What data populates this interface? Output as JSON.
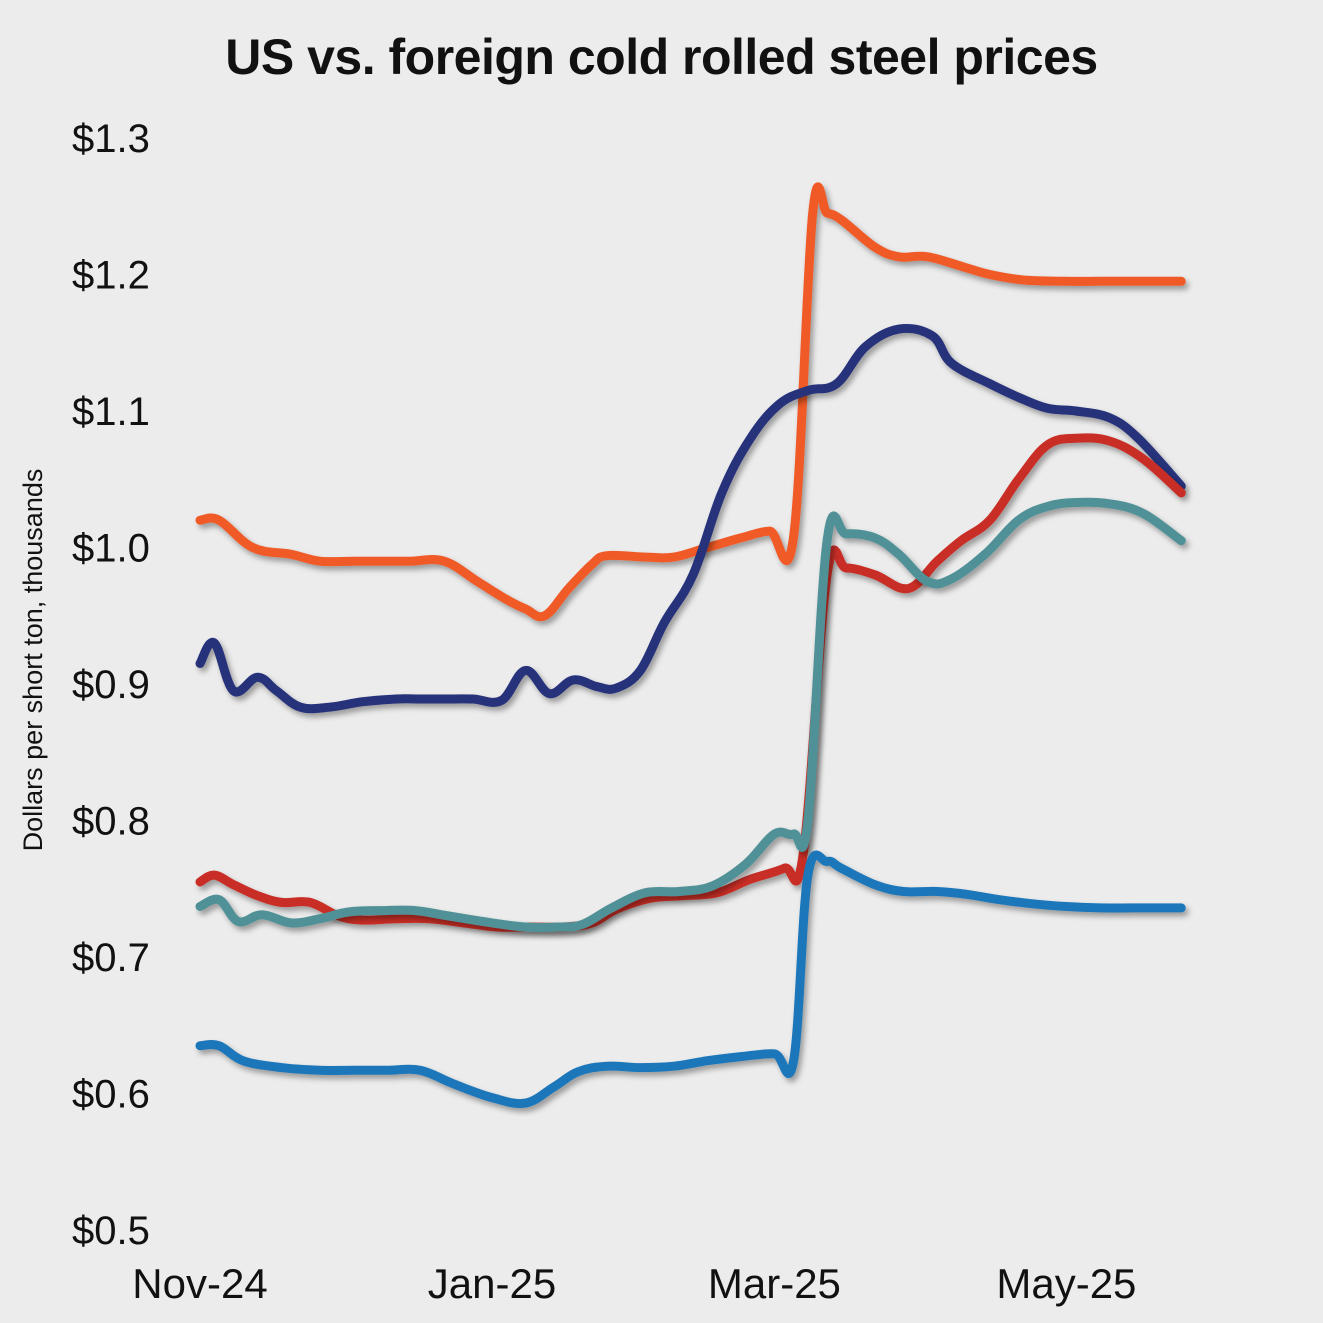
{
  "chart_data": {
    "type": "line",
    "title": "US vs. foreign cold rolled steel prices",
    "ylabel": "Dollars per short ton, thousands",
    "xlabel": "",
    "ylim": [
      0.5,
      1.3
    ],
    "yticks": [
      0.5,
      0.6,
      0.7,
      0.8,
      0.9,
      1.0,
      1.1,
      1.2,
      1.3
    ],
    "ytick_labels": [
      "$0.5",
      "$0.6",
      "$0.7",
      "$0.8",
      "$0.9",
      "$1.0",
      "$1.1",
      "$1.2",
      "$1.3"
    ],
    "xlim": [
      "2024-11-01",
      "2025-05-31"
    ],
    "xticks": [
      "2024-11-01",
      "2025-01-01",
      "2025-03-01",
      "2025-05-01"
    ],
    "xtick_labels": [
      "Nov-24",
      "Jan-25",
      "Mar-25",
      "May-25"
    ],
    "grid": false,
    "legend": "none",
    "series": [
      {
        "color": "#f05a28",
        "x": [
          "2024-11-01",
          "2024-11-05",
          "2024-11-12",
          "2024-11-20",
          "2024-11-26",
          "2024-12-03",
          "2024-12-10",
          "2024-12-15",
          "2024-12-22",
          "2024-12-29",
          "2025-01-04",
          "2025-01-08",
          "2025-01-12",
          "2025-01-17",
          "2025-01-22",
          "2025-01-25",
          "2025-02-02",
          "2025-02-08",
          "2025-02-15",
          "2025-02-22",
          "2025-02-28",
          "2025-03-05",
          "2025-03-09",
          "2025-03-12",
          "2025-03-15",
          "2025-03-22",
          "2025-03-27",
          "2025-04-02",
          "2025-04-10",
          "2025-04-15",
          "2025-04-22",
          "2025-05-01",
          "2025-05-08",
          "2025-05-14",
          "2025-05-25"
        ],
        "y": [
          1.02,
          1.02,
          1.0,
          0.995,
          0.99,
          0.99,
          0.99,
          0.99,
          0.99,
          0.975,
          0.962,
          0.955,
          0.95,
          0.97,
          0.988,
          0.994,
          0.993,
          0.993,
          1.0,
          1.007,
          1.012,
          1.008,
          1.245,
          1.245,
          1.24,
          1.22,
          1.213,
          1.213,
          1.205,
          1.2,
          1.196,
          1.195,
          1.195,
          1.195,
          1.195
        ]
      },
      {
        "color": "#25307a",
        "x": [
          "2024-11-01",
          "2024-11-04",
          "2024-11-08",
          "2024-11-13",
          "2024-11-17",
          "2024-11-22",
          "2024-11-28",
          "2024-12-05",
          "2024-12-12",
          "2024-12-17",
          "2024-12-22",
          "2024-12-28",
          "2025-01-03",
          "2025-01-08",
          "2025-01-13",
          "2025-01-18",
          "2025-01-23",
          "2025-01-27",
          "2025-02-01",
          "2025-02-06",
          "2025-02-12",
          "2025-02-18",
          "2025-02-24",
          "2025-03-02",
          "2025-03-08",
          "2025-03-14",
          "2025-03-20",
          "2025-03-27",
          "2025-04-03",
          "2025-04-07",
          "2025-04-15",
          "2025-04-21",
          "2025-04-27",
          "2025-05-03",
          "2025-05-10",
          "2025-05-16",
          "2025-05-25"
        ],
        "y": [
          0.915,
          0.93,
          0.895,
          0.905,
          0.895,
          0.883,
          0.883,
          0.887,
          0.889,
          0.889,
          0.889,
          0.889,
          0.888,
          0.91,
          0.893,
          0.903,
          0.898,
          0.897,
          0.91,
          0.945,
          0.98,
          1.04,
          1.08,
          1.105,
          1.115,
          1.12,
          1.147,
          1.16,
          1.155,
          1.135,
          1.12,
          1.11,
          1.102,
          1.1,
          1.095,
          1.08,
          1.045
        ]
      },
      {
        "color": "#c92e25",
        "x": [
          "2024-11-01",
          "2024-11-04",
          "2024-11-08",
          "2024-11-13",
          "2024-11-18",
          "2024-11-24",
          "2024-11-30",
          "2024-12-05",
          "2024-12-12",
          "2024-12-19",
          "2024-12-26",
          "2025-01-02",
          "2025-01-09",
          "2025-01-16",
          "2025-01-22",
          "2025-01-27",
          "2025-02-03",
          "2025-02-10",
          "2025-02-17",
          "2025-02-24",
          "2025-03-03",
          "2025-03-07",
          "2025-03-12",
          "2025-03-16",
          "2025-03-22",
          "2025-03-29",
          "2025-04-04",
          "2025-04-09",
          "2025-04-15",
          "2025-04-21",
          "2025-04-27",
          "2025-05-03",
          "2025-05-10",
          "2025-05-17",
          "2025-05-25"
        ],
        "y": [
          0.755,
          0.76,
          0.753,
          0.745,
          0.74,
          0.74,
          0.73,
          0.727,
          0.728,
          0.728,
          0.725,
          0.722,
          0.722,
          0.722,
          0.725,
          0.735,
          0.743,
          0.745,
          0.747,
          0.757,
          0.765,
          0.775,
          0.98,
          0.985,
          0.98,
          0.97,
          0.99,
          1.005,
          1.02,
          1.05,
          1.075,
          1.08,
          1.078,
          1.065,
          1.04
        ]
      },
      {
        "color": "#4f9197",
        "x": [
          "2024-11-01",
          "2024-11-05",
          "2024-11-09",
          "2024-11-14",
          "2024-11-20",
          "2024-11-26",
          "2024-12-02",
          "2024-12-09",
          "2024-12-16",
          "2024-12-23",
          "2025-01-01",
          "2025-01-08",
          "2025-01-15",
          "2025-01-20",
          "2025-01-26",
          "2025-02-02",
          "2025-02-09",
          "2025-02-16",
          "2025-02-23",
          "2025-03-01",
          "2025-03-05",
          "2025-03-08",
          "2025-03-12",
          "2025-03-16",
          "2025-03-22",
          "2025-03-27",
          "2025-04-02",
          "2025-04-07",
          "2025-04-14",
          "2025-04-21",
          "2025-04-27",
          "2025-05-03",
          "2025-05-10",
          "2025-05-17",
          "2025-05-25"
        ],
        "y": [
          0.737,
          0.742,
          0.726,
          0.731,
          0.725,
          0.728,
          0.733,
          0.734,
          0.734,
          0.73,
          0.725,
          0.722,
          0.722,
          0.724,
          0.736,
          0.747,
          0.748,
          0.752,
          0.768,
          0.79,
          0.79,
          0.8,
          1.005,
          1.01,
          1.007,
          0.995,
          0.975,
          0.977,
          0.995,
          1.02,
          1.03,
          1.033,
          1.032,
          1.025,
          1.005
        ]
      },
      {
        "color": "#1f77ba",
        "x": [
          "2024-11-01",
          "2024-11-05",
          "2024-11-10",
          "2024-11-18",
          "2024-11-26",
          "2024-12-03",
          "2024-12-10",
          "2024-12-17",
          "2024-12-24",
          "2025-01-01",
          "2025-01-08",
          "2025-01-14",
          "2025-01-19",
          "2025-01-25",
          "2025-02-01",
          "2025-02-08",
          "2025-02-15",
          "2025-02-22",
          "2025-03-01",
          "2025-03-05",
          "2025-03-08",
          "2025-03-12",
          "2025-03-15",
          "2025-03-22",
          "2025-03-28",
          "2025-04-04",
          "2025-04-10",
          "2025-04-17",
          "2025-04-24",
          "2025-05-01",
          "2025-05-08",
          "2025-05-15",
          "2025-05-25"
        ],
        "y": [
          0.635,
          0.635,
          0.624,
          0.619,
          0.617,
          0.617,
          0.617,
          0.617,
          0.607,
          0.597,
          0.593,
          0.605,
          0.616,
          0.62,
          0.619,
          0.62,
          0.624,
          0.627,
          0.629,
          0.624,
          0.76,
          0.77,
          0.765,
          0.753,
          0.748,
          0.748,
          0.746,
          0.742,
          0.739,
          0.737,
          0.736,
          0.736,
          0.736
        ]
      }
    ]
  }
}
